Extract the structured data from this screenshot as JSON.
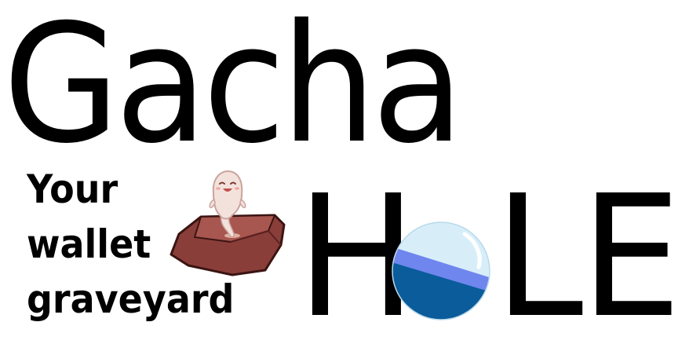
{
  "logo": {
    "title": "Gacha",
    "tagline": [
      "Your",
      "wallet",
      "graveyard"
    ],
    "hole_letters": {
      "h": "H",
      "o_graphic": "blue-orb-icon",
      "l": "L",
      "e": "E"
    },
    "mascot_graphic": "ghost-rising-from-grave-icon"
  },
  "colors": {
    "text": "#000000",
    "background": "#ffffff",
    "grave_dirt": "#8a3e3a",
    "ghost_body": "#f3e1dc",
    "orb_dark": "#0a5c9b",
    "orb_light": "#d7eef9",
    "orb_band": "#6f86ee"
  }
}
